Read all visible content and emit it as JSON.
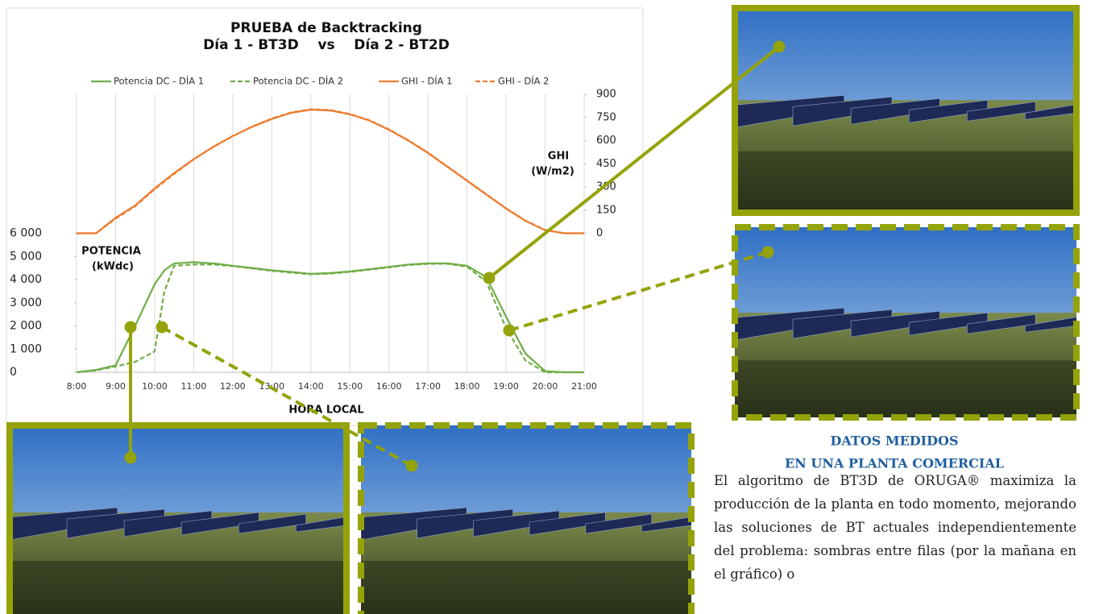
{
  "chart_data": {
    "type": "line",
    "title": [
      "PRUEBA de Backtracking",
      "Día 1 - BT3D    vs    Día 2 - BT2D"
    ],
    "y_label": [
      "POTENCIA",
      "(kWdc)"
    ],
    "y2_label": [
      "GHI",
      "(W/m2)"
    ],
    "x_label": "HORA LOCAL",
    "x": [
      8,
      8.5,
      9,
      9.5,
      10,
      10.25,
      10.5,
      11,
      11.5,
      12,
      12.5,
      13,
      13.5,
      14,
      14.5,
      15,
      15.5,
      16,
      16.5,
      17,
      17.5,
      18,
      18.5,
      19,
      19.5,
      20,
      20.5,
      21
    ],
    "xlim": [
      8,
      21
    ],
    "xticks": [
      {
        "value": 8,
        "label": "8:00"
      },
      {
        "value": 9,
        "label": "9:00"
      },
      {
        "value": 10,
        "label": "10:00"
      },
      {
        "value": 11,
        "label": "11:00"
      },
      {
        "value": 12,
        "label": "12:00"
      },
      {
        "value": 13,
        "label": "13:00"
      },
      {
        "value": 14,
        "label": "14:00"
      },
      {
        "value": 15,
        "label": "15:00"
      },
      {
        "value": 16,
        "label": "16:00"
      },
      {
        "value": 17,
        "label": "17:00"
      },
      {
        "value": 18,
        "label": "18:00"
      },
      {
        "value": 19,
        "label": "19:00"
      },
      {
        "value": 20,
        "label": "20:00"
      },
      {
        "value": 21,
        "label": "21:00"
      }
    ],
    "ylim": [
      0,
      12000
    ],
    "yticks": [
      0,
      {
        "value": 1000,
        "label": "1 000"
      },
      {
        "value": 2000,
        "label": "2 000"
      },
      {
        "value": 3000,
        "label": "3 000"
      },
      {
        "value": 4000,
        "label": "4 000"
      },
      {
        "value": 5000,
        "label": "5 000"
      },
      {
        "value": 6000,
        "label": "6 000"
      }
    ],
    "y2lim": [
      -900,
      900
    ],
    "y2ticks": [
      0,
      150,
      300,
      450,
      600,
      750,
      900
    ],
    "grid": "x",
    "series": [
      {
        "name": "Potencia DC - DÍA 1",
        "color": "#70ad47",
        "dashed": false,
        "values": [
          0,
          100,
          300,
          2000,
          3800,
          4400,
          4700,
          4750,
          4700,
          4600,
          4500,
          4400,
          4330,
          4250,
          4280,
          4350,
          4450,
          4550,
          4650,
          4700,
          4700,
          4600,
          4100,
          2400,
          800,
          50,
          0,
          0
        ]
      },
      {
        "name": "Potencia DC - DÍA 2",
        "color": "#70ad47",
        "dashed": true,
        "values": [
          0,
          80,
          250,
          450,
          900,
          3500,
          4600,
          4650,
          4650,
          4580,
          4480,
          4380,
          4300,
          4230,
          4260,
          4330,
          4430,
          4530,
          4630,
          4680,
          4680,
          4560,
          3900,
          1900,
          500,
          0,
          0,
          0
        ]
      },
      {
        "name": "GHI - DÍA 1",
        "color": "#ed7d31",
        "dashed": false,
        "axis": "y2",
        "values": [
          0,
          0,
          100,
          180,
          290,
          340,
          390,
          480,
          560,
          630,
          690,
          740,
          780,
          800,
          795,
          770,
          730,
          670,
          600,
          520,
          430,
          340,
          250,
          160,
          80,
          20,
          0,
          0
        ]
      },
      {
        "name": "GHI - DÍA 2",
        "color": "#ed7d31",
        "dashed": true,
        "axis": "y2",
        "values": [
          0,
          0,
          95,
          175,
          285,
          335,
          385,
          478,
          558,
          628,
          692,
          743,
          783,
          803,
          798,
          772,
          732,
          672,
          602,
          522,
          432,
          342,
          252,
          162,
          82,
          22,
          0,
          0
        ]
      }
    ]
  },
  "side": {
    "heading": [
      "DATOS MEDIDOS",
      "EN UNA PLANTA COMERCIAL"
    ],
    "paragraph": "El algoritmo de BT3D de ORUGA® maximiza la producción de la planta en todo momento, mejorando las soluciones de BT actuales independientemente del problema: sombras entre filas (por la mañana en el gráfico) o"
  }
}
